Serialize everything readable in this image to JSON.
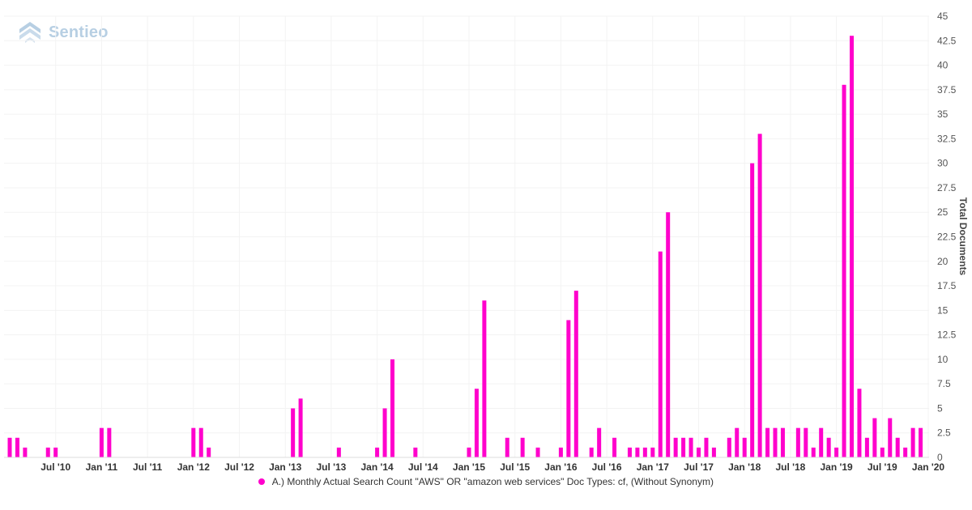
{
  "brand": {
    "name": "Sentieo",
    "logo_icon": "stacked-chevrons-icon",
    "color": "#b7cfe3"
  },
  "colors": {
    "bar": "#ff00cc",
    "grid": "#f3f3f3",
    "axis_text": "#555555"
  },
  "chart_data": {
    "type": "bar",
    "title": "",
    "xlabel": "",
    "ylabel": "Total Documents",
    "ylim": [
      0,
      45
    ],
    "y_ticks": [
      0,
      2.5,
      5,
      7.5,
      10,
      12.5,
      15,
      17.5,
      20,
      22.5,
      25,
      27.5,
      30,
      32.5,
      35,
      37.5,
      40,
      42.5,
      45
    ],
    "y_tick_labels": [
      "0",
      "2.5",
      "5",
      "7.5",
      "10",
      "12.5",
      "15",
      "17.5",
      "20",
      "22.5",
      "25",
      "27.5",
      "30",
      "32.5",
      "35",
      "37.5",
      "40",
      "42.5",
      "45"
    ],
    "x_start": "2010-01",
    "x_end": "2020-01",
    "y_axis_position": "right",
    "grid": true,
    "legend_position": "bottom-center",
    "x_ticks": [
      {
        "date": "2010-07",
        "label": "Jul '10"
      },
      {
        "date": "2011-01",
        "label": "Jan '11"
      },
      {
        "date": "2011-07",
        "label": "Jul '11"
      },
      {
        "date": "2012-01",
        "label": "Jan '12"
      },
      {
        "date": "2012-07",
        "label": "Jul '12"
      },
      {
        "date": "2013-01",
        "label": "Jan '13"
      },
      {
        "date": "2013-07",
        "label": "Jul '13"
      },
      {
        "date": "2014-01",
        "label": "Jan '14"
      },
      {
        "date": "2014-07",
        "label": "Jul '14"
      },
      {
        "date": "2015-01",
        "label": "Jan '15"
      },
      {
        "date": "2015-07",
        "label": "Jul '15"
      },
      {
        "date": "2016-01",
        "label": "Jan '16"
      },
      {
        "date": "2016-07",
        "label": "Jul '16"
      },
      {
        "date": "2017-01",
        "label": "Jan '17"
      },
      {
        "date": "2017-07",
        "label": "Jul '17"
      },
      {
        "date": "2018-01",
        "label": "Jan '18"
      },
      {
        "date": "2018-07",
        "label": "Jul '18"
      },
      {
        "date": "2019-01",
        "label": "Jan '19"
      },
      {
        "date": "2019-07",
        "label": "Jul '19"
      },
      {
        "date": "2020-01",
        "label": "Jan '20"
      }
    ],
    "series": [
      {
        "name": "A.) Monthly Actual Search Count \"AWS\" OR \"amazon web services\" Doc Types: cf, (Without Synonym)",
        "color": "#ff00cc",
        "points": [
          {
            "date": "2010-01",
            "value": 2
          },
          {
            "date": "2010-02",
            "value": 2
          },
          {
            "date": "2010-03",
            "value": 1
          },
          {
            "date": "2010-06",
            "value": 1
          },
          {
            "date": "2010-07",
            "value": 1
          },
          {
            "date": "2011-01",
            "value": 3
          },
          {
            "date": "2011-02",
            "value": 3
          },
          {
            "date": "2012-01",
            "value": 3
          },
          {
            "date": "2012-02",
            "value": 3
          },
          {
            "date": "2012-03",
            "value": 1
          },
          {
            "date": "2013-02",
            "value": 5
          },
          {
            "date": "2013-03",
            "value": 6
          },
          {
            "date": "2013-08",
            "value": 1
          },
          {
            "date": "2014-01",
            "value": 1
          },
          {
            "date": "2014-02",
            "value": 5
          },
          {
            "date": "2014-03",
            "value": 10
          },
          {
            "date": "2014-06",
            "value": 1
          },
          {
            "date": "2015-01",
            "value": 1
          },
          {
            "date": "2015-02",
            "value": 7
          },
          {
            "date": "2015-03",
            "value": 16
          },
          {
            "date": "2015-06",
            "value": 2
          },
          {
            "date": "2015-08",
            "value": 2
          },
          {
            "date": "2015-10",
            "value": 1
          },
          {
            "date": "2016-01",
            "value": 1
          },
          {
            "date": "2016-02",
            "value": 14
          },
          {
            "date": "2016-03",
            "value": 17
          },
          {
            "date": "2016-05",
            "value": 1
          },
          {
            "date": "2016-06",
            "value": 3
          },
          {
            "date": "2016-08",
            "value": 2
          },
          {
            "date": "2016-10",
            "value": 1
          },
          {
            "date": "2016-11",
            "value": 1
          },
          {
            "date": "2016-12",
            "value": 1
          },
          {
            "date": "2017-01",
            "value": 1
          },
          {
            "date": "2017-02",
            "value": 21
          },
          {
            "date": "2017-03",
            "value": 25
          },
          {
            "date": "2017-04",
            "value": 2
          },
          {
            "date": "2017-05",
            "value": 2
          },
          {
            "date": "2017-06",
            "value": 2
          },
          {
            "date": "2017-07",
            "value": 1
          },
          {
            "date": "2017-08",
            "value": 2
          },
          {
            "date": "2017-09",
            "value": 1
          },
          {
            "date": "2017-11",
            "value": 2
          },
          {
            "date": "2017-12",
            "value": 3
          },
          {
            "date": "2018-01",
            "value": 2
          },
          {
            "date": "2018-02",
            "value": 30
          },
          {
            "date": "2018-03",
            "value": 33
          },
          {
            "date": "2018-04",
            "value": 3
          },
          {
            "date": "2018-05",
            "value": 3
          },
          {
            "date": "2018-06",
            "value": 3
          },
          {
            "date": "2018-08",
            "value": 3
          },
          {
            "date": "2018-09",
            "value": 3
          },
          {
            "date": "2018-10",
            "value": 1
          },
          {
            "date": "2018-11",
            "value": 3
          },
          {
            "date": "2018-12",
            "value": 2
          },
          {
            "date": "2019-01",
            "value": 1
          },
          {
            "date": "2019-02",
            "value": 38
          },
          {
            "date": "2019-03",
            "value": 43
          },
          {
            "date": "2019-04",
            "value": 7
          },
          {
            "date": "2019-05",
            "value": 2
          },
          {
            "date": "2019-06",
            "value": 4
          },
          {
            "date": "2019-07",
            "value": 1
          },
          {
            "date": "2019-08",
            "value": 4
          },
          {
            "date": "2019-09",
            "value": 2
          },
          {
            "date": "2019-10",
            "value": 1
          },
          {
            "date": "2019-11",
            "value": 3
          },
          {
            "date": "2019-12",
            "value": 3
          }
        ]
      }
    ]
  }
}
